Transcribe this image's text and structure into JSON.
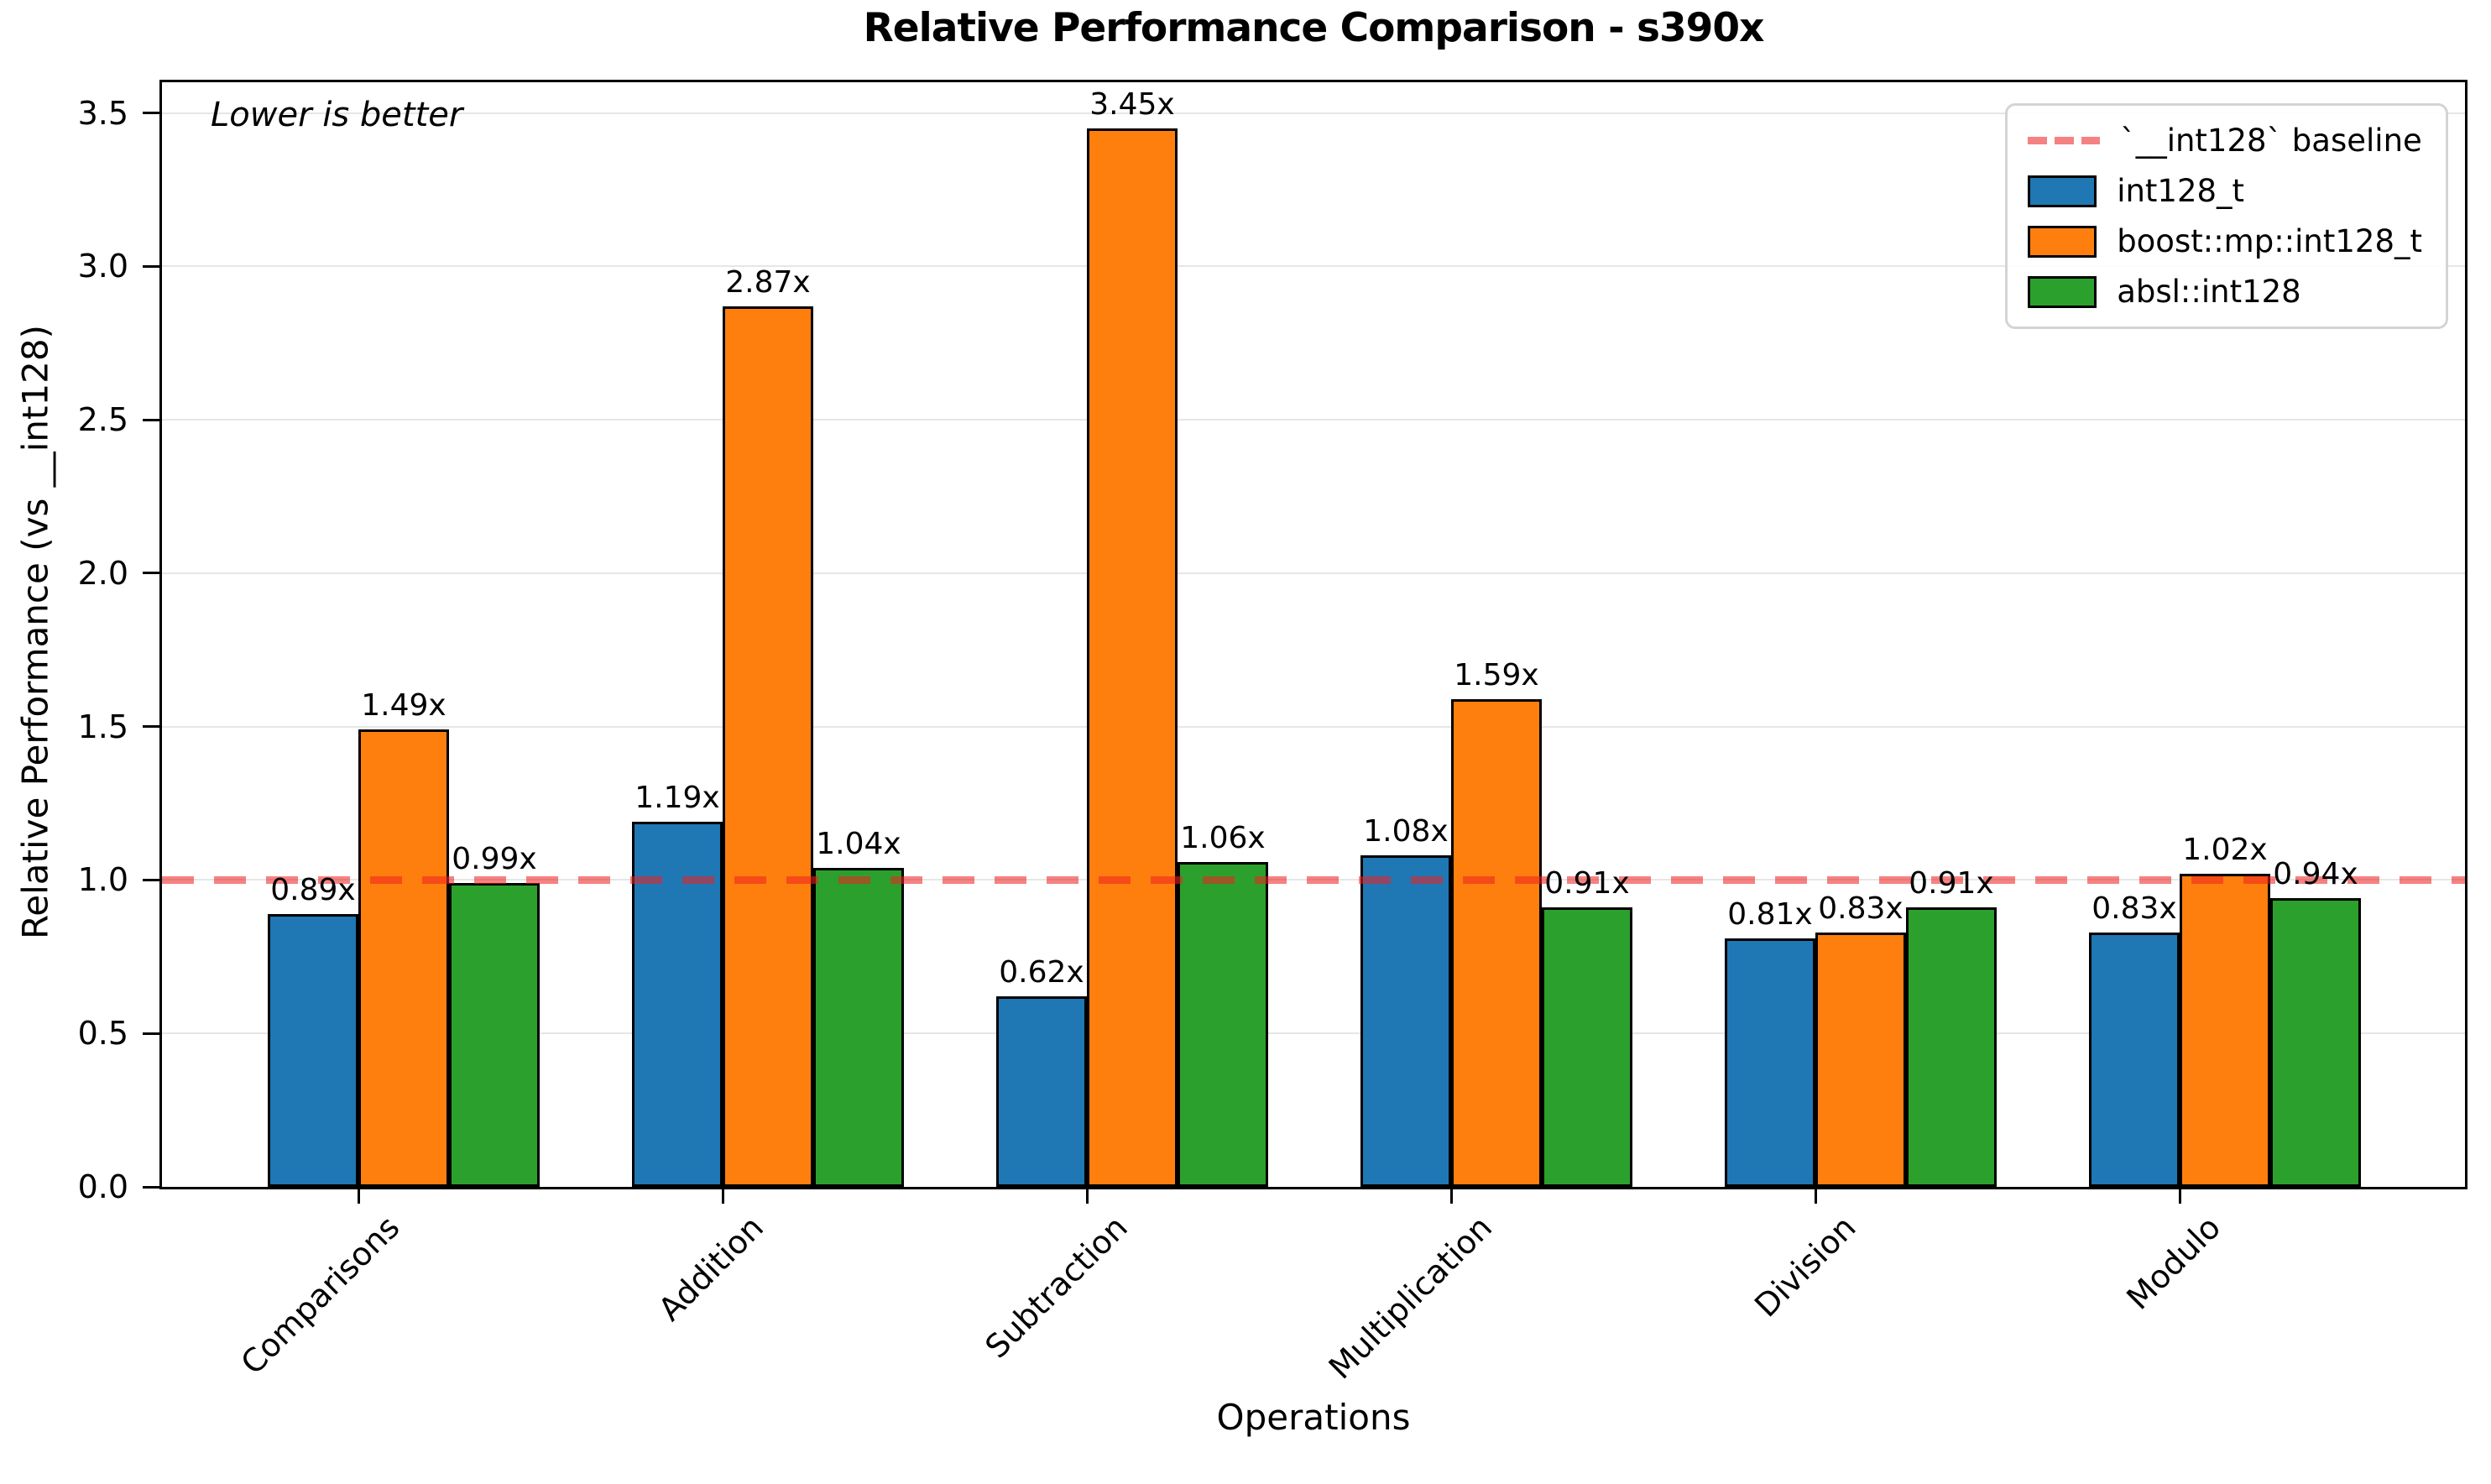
{
  "title": "Relative Performance Comparison - s390x",
  "annotation": "Lower is better",
  "x_axis": {
    "label": "Operations",
    "tick_labels": [
      "Comparisons",
      "Addition",
      "Subtraction",
      "Multiplication",
      "Division",
      "Modulo"
    ]
  },
  "y_axis": {
    "label": "Relative Performance (vs __int128)",
    "tick_labels": [
      "0.0",
      "0.5",
      "1.0",
      "1.5",
      "2.0",
      "2.5",
      "3.0",
      "3.5"
    ]
  },
  "legend": {
    "entries": [
      {
        "label": "`__int128` baseline",
        "type": "dashed-line",
        "color": "#f58282"
      },
      {
        "label": "int128_t",
        "type": "box",
        "color": "#1f77b4"
      },
      {
        "label": "boost::mp::int128_t",
        "type": "box",
        "color": "#ff7f0e"
      },
      {
        "label": "absl::int128",
        "type": "box",
        "color": "#2ca02c"
      }
    ]
  },
  "chart_data": {
    "type": "bar",
    "title": "Relative Performance Comparison - s390x",
    "xlabel": "Operations",
    "ylabel": "Relative Performance (vs __int128)",
    "categories": [
      "Comparisons",
      "Addition",
      "Subtraction",
      "Multiplication",
      "Division",
      "Modulo"
    ],
    "series": [
      {
        "name": "int128_t",
        "color": "#1f77b4",
        "values": [
          0.89,
          1.19,
          0.62,
          1.08,
          0.81,
          0.83
        ]
      },
      {
        "name": "boost::mp::int128_t",
        "color": "#ff7f0e",
        "values": [
          1.49,
          2.87,
          3.45,
          1.59,
          0.83,
          1.02
        ]
      },
      {
        "name": "absl::int128",
        "color": "#2ca02c",
        "values": [
          0.99,
          1.04,
          1.06,
          0.91,
          0.91,
          0.94
        ]
      }
    ],
    "bar_labels": [
      [
        "0.89x",
        "1.19x",
        "0.62x",
        "1.08x",
        "0.81x",
        "0.83x"
      ],
      [
        "1.49x",
        "2.87x",
        "3.45x",
        "1.59x",
        "0.83x",
        "1.02x"
      ],
      [
        "0.99x",
        "1.04x",
        "1.06x",
        "0.91x",
        "0.91x",
        "0.94x"
      ]
    ],
    "baseline": {
      "value": 1.0,
      "label": "`__int128` baseline"
    },
    "ylim": [
      0,
      3.6
    ],
    "yticks": [
      0.0,
      0.5,
      1.0,
      1.5,
      2.0,
      2.5,
      3.0,
      3.5
    ],
    "annotation": "Lower is better",
    "grid": "horizontal",
    "legend_position": "upper right",
    "bar_edge_color": "#000000"
  }
}
